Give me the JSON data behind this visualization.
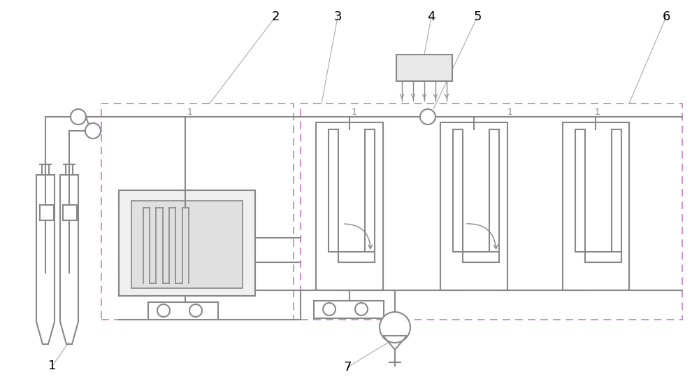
{
  "bg_color": "#ffffff",
  "lc": "#888888",
  "lc_dark": "#555555",
  "pink": "#cc88cc",
  "cyan": "#88cccc",
  "lw": 1.5,
  "lw_thin": 1.0,
  "lw_thick": 2.0
}
